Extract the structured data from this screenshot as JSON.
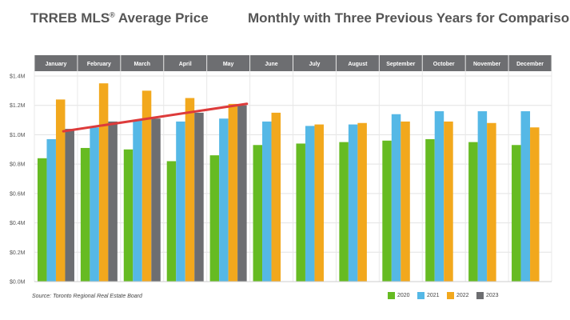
{
  "header": {
    "title_main": "TRREB MLS",
    "title_mark": "®",
    "title_rest": " Average Price",
    "subtitle": "Monthly with Three Previous Years for Comparison"
  },
  "source": "Source: Toronto Regional Real Estate Board",
  "colors": {
    "2020": "#66bb22",
    "2021": "#55b8e6",
    "2022": "#f2a81d",
    "2023": "#6d6e71",
    "header_band": "#6d6e71",
    "trend_line": "#dd3b3b"
  },
  "chart_data": {
    "type": "bar",
    "categories": [
      "January",
      "February",
      "March",
      "April",
      "May",
      "June",
      "July",
      "August",
      "September",
      "October",
      "November",
      "December"
    ],
    "series": [
      {
        "name": "2020",
        "values": [
          0.84,
          0.91,
          0.9,
          0.82,
          0.86,
          0.93,
          0.94,
          0.95,
          0.96,
          0.97,
          0.95,
          0.93
        ]
      },
      {
        "name": "2021",
        "values": [
          0.97,
          1.05,
          1.1,
          1.09,
          1.11,
          1.09,
          1.06,
          1.07,
          1.14,
          1.16,
          1.16,
          1.16
        ]
      },
      {
        "name": "2022",
        "values": [
          1.24,
          1.35,
          1.3,
          1.25,
          1.21,
          1.15,
          1.07,
          1.08,
          1.09,
          1.09,
          1.08,
          1.05
        ]
      },
      {
        "name": "2023",
        "values": [
          1.04,
          1.09,
          1.11,
          1.15,
          1.2,
          null,
          null,
          null,
          null,
          null,
          null,
          null
        ]
      }
    ],
    "trend": {
      "from": "January",
      "to": "May",
      "start": 1.04,
      "end": 1.2
    },
    "yticks": [
      "$0.0M",
      "$0.2M",
      "$0.4M",
      "$0.6M",
      "$0.8M",
      "$1.0M",
      "$1.2M",
      "$1.4M"
    ],
    "ylim": [
      0,
      1.4
    ],
    "ylabel": "",
    "xlabel": "",
    "grid": true,
    "legend_position": "bottom-right"
  }
}
